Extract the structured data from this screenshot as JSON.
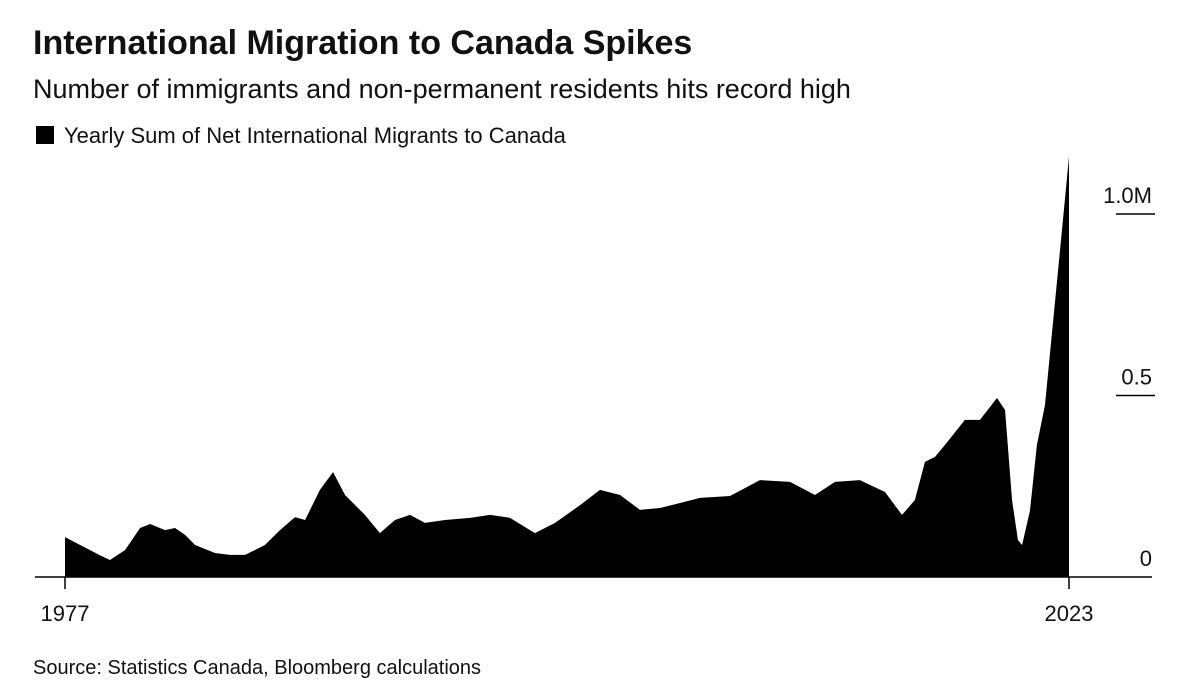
{
  "chart_data": {
    "type": "area",
    "title": "International Migration to Canada Spikes",
    "subtitle": "Number of immigrants and non-permanent residents hits record high",
    "source": "Source: Statistics Canada, Bloomberg calculations",
    "xlim": [
      1977,
      2023
    ],
    "xticks": [
      1977,
      2023
    ],
    "ylim": [
      0,
      1
    ],
    "yticks": [
      0,
      0.5,
      {
        "value": 1,
        "label": "1.0M"
      }
    ],
    "series": [
      {
        "name": "Yearly Sum of Net International Migrants to Canada",
        "color": "#000000",
        "x": [
          1977.0,
          1978.6,
          1979.06,
          1979.75,
          1980.44,
          1980.9,
          1981.58,
          1982.04,
          1982.5,
          1982.96,
          1983.87,
          1984.56,
          1985.25,
          1986.16,
          1986.85,
          1987.54,
          1988.0,
          1988.68,
          1989.28,
          1989.83,
          1990.74,
          1991.43,
          1992.12,
          1992.81,
          1993.49,
          1994.41,
          1995.56,
          1996.47,
          1997.39,
          1998.53,
          1999.45,
          2000.6,
          2001.51,
          2002.43,
          2003.34,
          2004.26,
          2005.18,
          2006.09,
          2007.47,
          2008.84,
          2010.22,
          2011.36,
          2012.28,
          2013.42,
          2014.57,
          2015.35,
          2015.94,
          2016.4,
          2016.86,
          2017.32,
          2018.23,
          2018.92,
          2019.7,
          2020.07,
          2020.39,
          2020.66,
          2020.85,
          2021.21,
          2021.53,
          2021.9,
          2022.59,
          2023.0
        ],
        "values": [
          0.11,
          0.06,
          0.047,
          0.074,
          0.135,
          0.146,
          0.129,
          0.135,
          0.116,
          0.088,
          0.066,
          0.061,
          0.061,
          0.088,
          0.129,
          0.165,
          0.157,
          0.24,
          0.289,
          0.226,
          0.171,
          0.121,
          0.157,
          0.171,
          0.149,
          0.157,
          0.163,
          0.171,
          0.163,
          0.121,
          0.149,
          0.198,
          0.24,
          0.226,
          0.185,
          0.19,
          0.204,
          0.218,
          0.223,
          0.267,
          0.262,
          0.226,
          0.262,
          0.267,
          0.234,
          0.171,
          0.212,
          0.317,
          0.331,
          0.364,
          0.433,
          0.433,
          0.493,
          0.46,
          0.212,
          0.102,
          0.088,
          0.182,
          0.364,
          0.474,
          0.901,
          1.157
        ]
      }
    ]
  }
}
